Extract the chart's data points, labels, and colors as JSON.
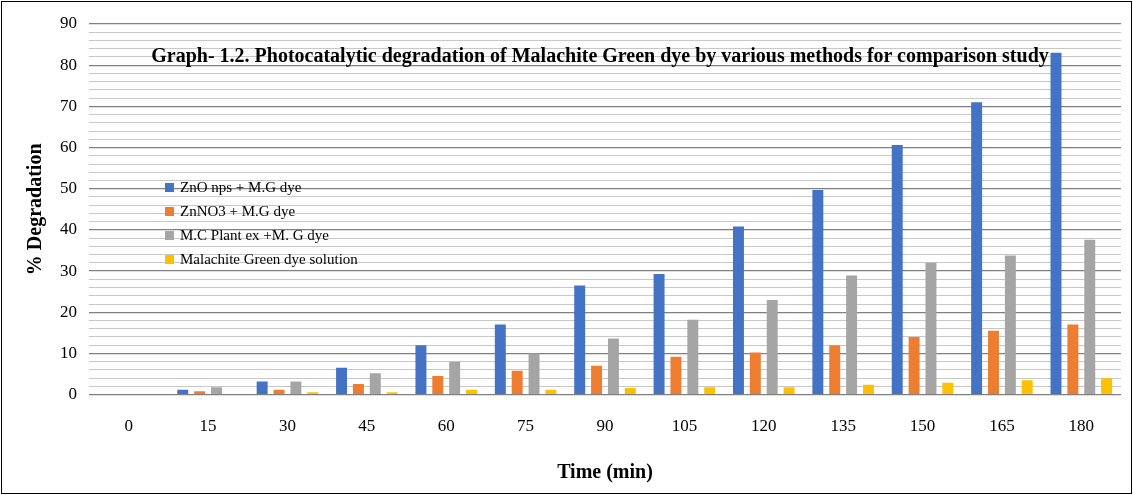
{
  "chart_data": {
    "type": "bar",
    "title": "Graph- 1.2. Photocatalytic degradation of Malachite Green dye by various methods for comparison study",
    "xlabel": "Time (min)",
    "ylabel": "% Degradation",
    "categories": [
      "0",
      "15",
      "30",
      "45",
      "60",
      "75",
      "90",
      "105",
      "120",
      "135",
      "150",
      "165",
      "180"
    ],
    "series": [
      {
        "name": "ZnO nps + M.G dye",
        "color": "#4472c4",
        "values": [
          0,
          1.2,
          3.2,
          6.5,
          12,
          17,
          26.5,
          29.3,
          40.8,
          49.7,
          60.6,
          71,
          83
        ]
      },
      {
        "name": "ZnNO3  + M.G dye",
        "color": "#ed7d31",
        "values": [
          0,
          0.8,
          1.2,
          2.6,
          4.5,
          5.8,
          7,
          9.2,
          10.2,
          12,
          14,
          15.5,
          17
        ]
      },
      {
        "name": "M.C Plant ex +M. G dye",
        "color": "#a5a5a5",
        "values": [
          0,
          1.8,
          3.2,
          5.2,
          8,
          10,
          13.6,
          18.2,
          23,
          28.9,
          32,
          33.8,
          37.6
        ]
      },
      {
        "name": "Malachite Green  dye solution",
        "color": "#ffc000",
        "values": [
          0,
          0,
          0.6,
          0.6,
          1.2,
          1.2,
          1.6,
          1.8,
          1.8,
          2.4,
          2.9,
          3.5,
          4
        ]
      }
    ],
    "ylim": [
      0,
      90
    ],
    "yticks": [
      0,
      {
        "value": 2,
        "label": null
      },
      {
        "value": 4,
        "label": null
      },
      {
        "value": 6,
        "label": null
      },
      {
        "value": 8,
        "label": null
      },
      10,
      {
        "value": 12,
        "label": null
      },
      {
        "value": 14,
        "label": null
      },
      {
        "value": 16,
        "label": null
      },
      {
        "value": 18,
        "label": null
      },
      20,
      {
        "value": 22,
        "label": null
      },
      {
        "value": 24,
        "label": null
      },
      {
        "value": 26,
        "label": null
      },
      {
        "value": 28,
        "label": null
      },
      30,
      {
        "value": 32,
        "label": null
      },
      {
        "value": 34,
        "label": null
      },
      {
        "value": 36,
        "label": null
      },
      {
        "value": 38,
        "label": null
      },
      40,
      {
        "value": 42,
        "label": null
      },
      {
        "value": 44,
        "label": null
      },
      {
        "value": 46,
        "label": null
      },
      {
        "value": 48,
        "label": null
      },
      50,
      {
        "value": 52,
        "label": null
      },
      {
        "value": 54,
        "label": null
      },
      {
        "value": 56,
        "label": null
      },
      {
        "value": 58,
        "label": null
      },
      60,
      {
        "value": 62,
        "label": null
      },
      {
        "value": 64,
        "label": null
      },
      {
        "value": 66,
        "label": null
      },
      {
        "value": 68,
        "label": null
      },
      70,
      {
        "value": 72,
        "label": null
      },
      {
        "value": 74,
        "label": null
      },
      {
        "value": 76,
        "label": null
      },
      {
        "value": 78,
        "label": null
      },
      80,
      {
        "value": 82,
        "label": null
      },
      {
        "value": 84,
        "label": null
      },
      {
        "value": 86,
        "label": null
      },
      {
        "value": 88,
        "label": null
      },
      90
    ],
    "grid": "y",
    "legend": "left"
  }
}
